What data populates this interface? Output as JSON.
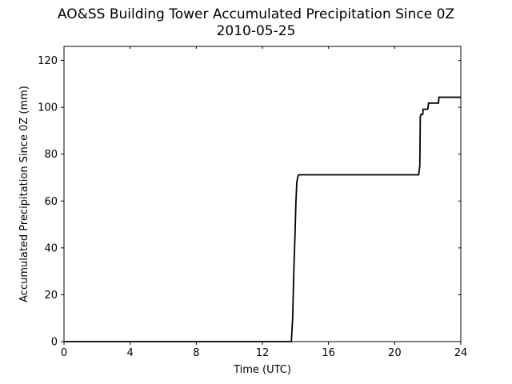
{
  "chart_data": {
    "type": "line",
    "title": "AO&SS Building Tower Accumulated Precipitation Since 0Z",
    "subtitle": "2010-05-25",
    "xlabel": "Time (UTC)",
    "ylabel": "Accumulated Precipitation Since 0Z (mm)",
    "xlim": [
      0,
      24
    ],
    "ylim": [
      0,
      126
    ],
    "xticks": [
      0,
      4,
      8,
      12,
      16,
      20,
      24
    ],
    "yticks": [
      0,
      20,
      40,
      60,
      80,
      100,
      120
    ],
    "grid": false,
    "series": [
      {
        "color": "#000000",
        "x": [
          0,
          13.75,
          13.83,
          13.9,
          13.97,
          14.03,
          14.08,
          14.15,
          14.2,
          21.45,
          21.52,
          21.55,
          21.6,
          21.7,
          21.72,
          22.0,
          22.05,
          22.65,
          22.68,
          24
        ],
        "y": [
          0,
          0,
          10,
          30,
          45,
          60,
          68,
          70.5,
          71.2,
          71.2,
          75,
          96,
          97,
          97,
          99.2,
          99.2,
          101.8,
          101.8,
          104.3,
          104.3
        ]
      }
    ]
  }
}
